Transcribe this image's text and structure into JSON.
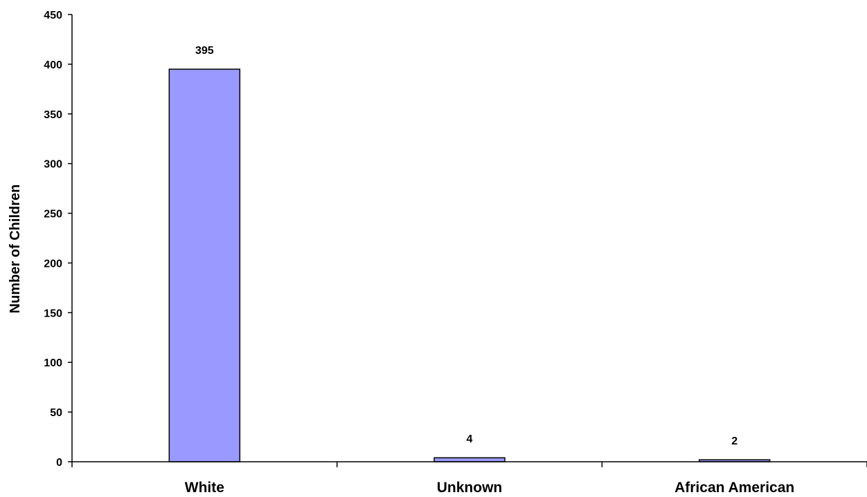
{
  "chart_data": {
    "type": "bar",
    "title": "",
    "xlabel": "",
    "ylabel": "Number of Children",
    "categories": [
      "White",
      "Unknown",
      "African American"
    ],
    "values": [
      395,
      4,
      2
    ],
    "data_labels": [
      "395",
      "4",
      "2"
    ],
    "ylim": [
      0,
      450
    ],
    "yticks": [
      0,
      50,
      100,
      150,
      200,
      250,
      300,
      350,
      400,
      450
    ],
    "grid": false,
    "legend": "none",
    "bar_color": "#9999ff",
    "bar_edge_color": "#000000"
  }
}
